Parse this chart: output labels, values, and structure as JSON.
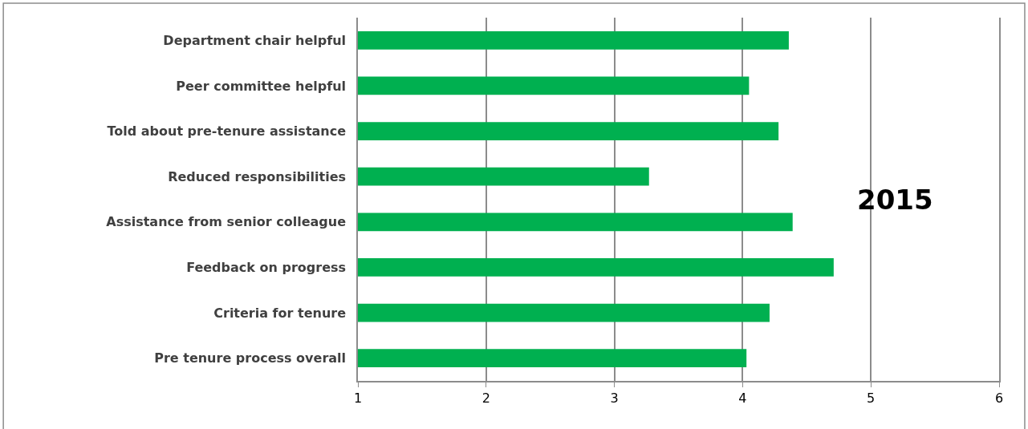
{
  "chart_data": {
    "type": "bar",
    "orientation": "horizontal",
    "categories": [
      "Department chair helpful",
      "Peer committee helpful",
      "Told about pre-tenure assistance",
      "Reduced responsibilities",
      "Assistance from senior colleague",
      "Feedback on progress",
      "Criteria for tenure",
      "Pre tenure process overall"
    ],
    "values": [
      4.36,
      4.05,
      4.28,
      3.27,
      4.39,
      4.71,
      4.21,
      4.03
    ],
    "color": "#00b050",
    "xlim": [
      1,
      6
    ],
    "xticks": [
      1,
      2,
      3,
      4,
      5,
      6
    ],
    "grid": "x",
    "legend": false,
    "annotations": [
      "2015"
    ]
  }
}
